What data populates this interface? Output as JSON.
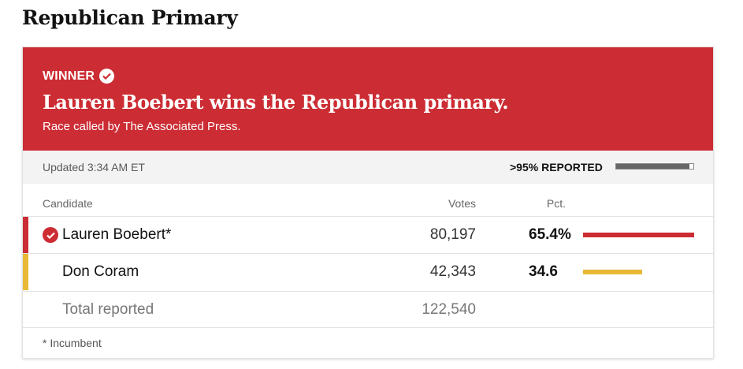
{
  "page": {
    "title": "Republican Primary"
  },
  "banner": {
    "winner_label": "WINNER",
    "headline": "Lauren Boebert wins the Republican primary.",
    "subline": "Race called by The Associated Press.",
    "color": "#cc2c33"
  },
  "status": {
    "updated": "Updated 3:34 AM ET",
    "reported_label": ">95% REPORTED",
    "reported_fraction": 0.95
  },
  "table": {
    "headers": {
      "candidate": "Candidate",
      "votes": "Votes",
      "pct": "Pct."
    },
    "rows": [
      {
        "name": "Lauren Boebert*",
        "votes": "80,197",
        "pct": "65.4%",
        "pct_value": 65.4,
        "winner": true,
        "color": "#cc2c33"
      },
      {
        "name": "Don Coram",
        "votes": "42,343",
        "pct": "34.6",
        "pct_value": 34.6,
        "winner": false,
        "color": "#e8b934"
      }
    ],
    "total": {
      "label": "Total reported",
      "votes": "122,540"
    }
  },
  "footnote": "* Incumbent",
  "icons": {
    "winner_check": "checkmark-icon",
    "candidate_check": "checkmark-icon"
  }
}
